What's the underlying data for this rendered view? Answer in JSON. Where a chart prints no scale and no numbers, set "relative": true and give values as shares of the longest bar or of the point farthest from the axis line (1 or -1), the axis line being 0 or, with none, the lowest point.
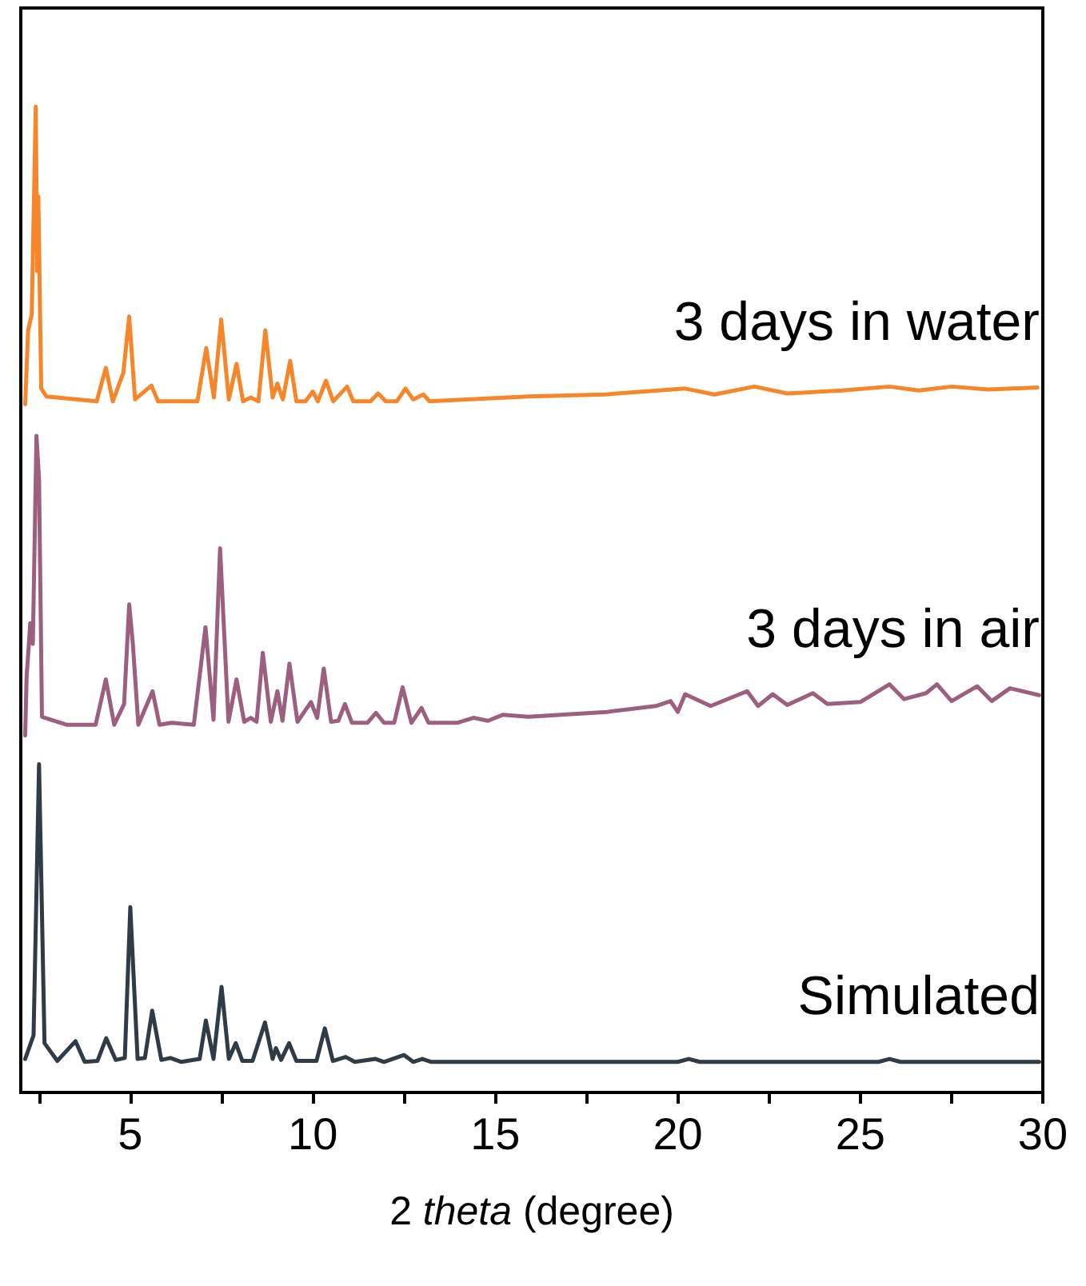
{
  "chart_data": {
    "type": "line",
    "xlabel": "2 theta (degree)",
    "relative": true,
    "marker": "none",
    "line_style": "solid",
    "grid": false,
    "legend": false,
    "xlim": [
      2,
      30
    ],
    "xticks": [
      {
        "value": 2.5,
        "label": null
      },
      5,
      {
        "value": 7.5,
        "label": null
      },
      10,
      {
        "value": 12.5,
        "label": null
      },
      15,
      {
        "value": 17.5,
        "label": null
      },
      20,
      {
        "value": 22.5,
        "label": null
      },
      25,
      {
        "value": 27.5,
        "label": null
      },
      30
    ],
    "series": [
      {
        "name": "3 days in water",
        "color": "#f7862a",
        "x": [
          2.12,
          2.2,
          2.3,
          2.41,
          2.45,
          2.48,
          2.56,
          2.7,
          4.08,
          4.33,
          4.52,
          4.81,
          4.97,
          5.13,
          5.58,
          5.76,
          6.84,
          7.08,
          7.29,
          7.49,
          7.7,
          7.91,
          8.09,
          8.3,
          8.51,
          8.7,
          8.9,
          9.03,
          9.18,
          9.38,
          9.55,
          9.8,
          10.0,
          10.14,
          10.36,
          10.56,
          10.94,
          11.11,
          11.58,
          11.79,
          12.0,
          12.3,
          12.54,
          12.75,
          13.03,
          13.2,
          15.9,
          18.0,
          20.2,
          21.0,
          22.1,
          23.0,
          24.5,
          25.8,
          26.6,
          27.5,
          28.5,
          29.85
        ],
        "values": [
          0.698,
          0.773,
          0.789,
          1.0,
          0.833,
          0.909,
          0.714,
          0.706,
          0.701,
          0.735,
          0.701,
          0.73,
          0.787,
          0.703,
          0.717,
          0.701,
          0.701,
          0.755,
          0.705,
          0.784,
          0.703,
          0.739,
          0.701,
          0.705,
          0.701,
          0.773,
          0.705,
          0.719,
          0.703,
          0.742,
          0.701,
          0.701,
          0.711,
          0.701,
          0.722,
          0.701,
          0.716,
          0.701,
          0.701,
          0.709,
          0.701,
          0.701,
          0.714,
          0.703,
          0.708,
          0.701,
          0.706,
          0.708,
          0.714,
          0.708,
          0.716,
          0.709,
          0.712,
          0.716,
          0.712,
          0.716,
          0.713,
          0.715
        ]
      },
      {
        "name": "3 days in air",
        "color": "#9c5f80",
        "x": [
          2.12,
          2.16,
          2.26,
          2.33,
          2.43,
          2.5,
          2.58,
          3.25,
          4.05,
          4.33,
          4.56,
          4.83,
          4.97,
          5.07,
          5.22,
          5.61,
          5.8,
          6.13,
          6.74,
          7.06,
          7.28,
          7.46,
          7.69,
          7.91,
          8.12,
          8.3,
          8.46,
          8.63,
          8.85,
          9.03,
          9.17,
          9.36,
          9.58,
          9.95,
          10.12,
          10.3,
          10.5,
          10.7,
          10.88,
          11.07,
          11.5,
          11.73,
          11.95,
          12.23,
          12.46,
          12.7,
          12.98,
          13.17,
          13.97,
          14.4,
          14.8,
          15.2,
          15.9,
          18.06,
          19.4,
          19.8,
          20.0,
          20.2,
          20.9,
          21.9,
          22.2,
          22.6,
          23.0,
          23.7,
          24.1,
          25.0,
          25.8,
          26.2,
          26.8,
          27.1,
          27.5,
          28.2,
          28.6,
          29.1,
          29.9
        ],
        "values": [
          0.362,
          0.422,
          0.476,
          0.455,
          0.666,
          0.622,
          0.381,
          0.373,
          0.373,
          0.419,
          0.373,
          0.394,
          0.495,
          0.455,
          0.373,
          0.407,
          0.373,
          0.375,
          0.373,
          0.472,
          0.378,
          0.552,
          0.376,
          0.419,
          0.376,
          0.38,
          0.376,
          0.446,
          0.376,
          0.407,
          0.377,
          0.435,
          0.376,
          0.396,
          0.38,
          0.43,
          0.376,
          0.377,
          0.394,
          0.375,
          0.375,
          0.385,
          0.375,
          0.375,
          0.411,
          0.375,
          0.39,
          0.375,
          0.375,
          0.38,
          0.377,
          0.383,
          0.381,
          0.386,
          0.392,
          0.397,
          0.386,
          0.404,
          0.392,
          0.407,
          0.392,
          0.404,
          0.393,
          0.405,
          0.394,
          0.396,
          0.414,
          0.399,
          0.405,
          0.414,
          0.397,
          0.412,
          0.397,
          0.41,
          0.403
        ]
      },
      {
        "name": "Simulated",
        "color": "#2f3b46",
        "x": [
          2.12,
          2.35,
          2.5,
          2.65,
          3.0,
          3.5,
          3.75,
          4.1,
          4.34,
          4.6,
          4.85,
          5.0,
          5.2,
          5.4,
          5.6,
          5.85,
          6.1,
          6.4,
          6.9,
          7.07,
          7.28,
          7.5,
          7.7,
          7.89,
          8.07,
          8.35,
          8.69,
          8.9,
          8.99,
          9.13,
          9.35,
          9.55,
          10.1,
          10.33,
          10.55,
          10.9,
          11.15,
          11.72,
          11.95,
          12.5,
          12.75,
          13.0,
          13.25,
          16.3,
          20.0,
          20.3,
          20.6,
          25.5,
          25.8,
          26.1,
          29.9
        ],
        "values": [
          0.034,
          0.058,
          0.333,
          0.05,
          0.032,
          0.052,
          0.031,
          0.032,
          0.055,
          0.033,
          0.035,
          0.188,
          0.034,
          0.035,
          0.083,
          0.033,
          0.035,
          0.031,
          0.034,
          0.073,
          0.034,
          0.107,
          0.034,
          0.05,
          0.032,
          0.032,
          0.071,
          0.034,
          0.045,
          0.033,
          0.05,
          0.032,
          0.032,
          0.065,
          0.032,
          0.036,
          0.031,
          0.034,
          0.031,
          0.038,
          0.031,
          0.034,
          0.031,
          0.031,
          0.031,
          0.034,
          0.031,
          0.031,
          0.034,
          0.031,
          0.031
        ]
      }
    ]
  }
}
